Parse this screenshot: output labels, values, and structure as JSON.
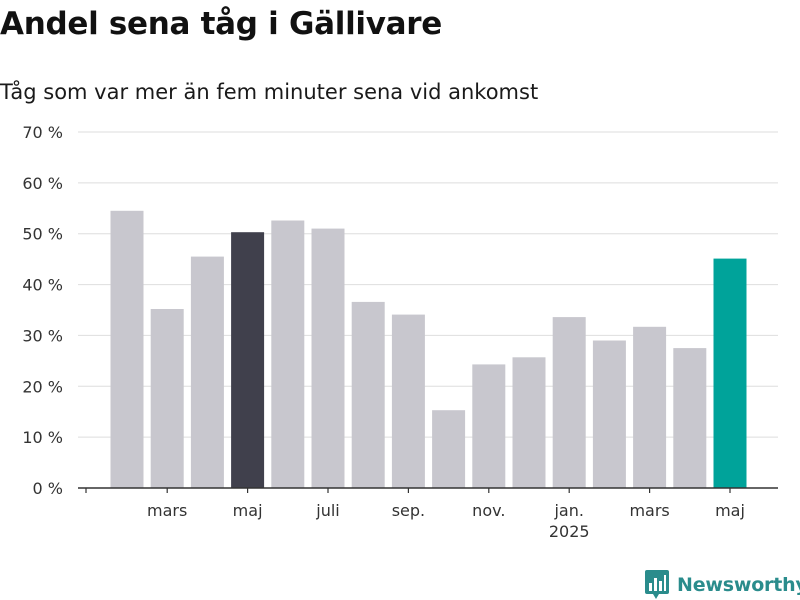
{
  "header": {
    "title": "Andel sena tåg i Gällivare",
    "subtitle": "Tåg som var mer än fem minuter sena vid ankomst"
  },
  "brand": {
    "name": "Newsworthy",
    "color": "#2a8c8c"
  },
  "colors": {
    "default": "#c8c7ce",
    "previous_year": "#40404c",
    "latest": "#00a39a"
  },
  "chart_data": {
    "type": "bar",
    "title": "Andel sena tåg i Gällivare",
    "subtitle": "Tåg som var mer än fem minuter sena vid ankomst",
    "xlabel": "",
    "ylabel": "",
    "ylim": [
      0,
      70
    ],
    "yticks": [
      0,
      10,
      20,
      30,
      40,
      50,
      60,
      70
    ],
    "ytick_labels": [
      "0 %",
      "10 %",
      "20 %",
      "30 %",
      "40 %",
      "50 %",
      "60 %",
      "70 %"
    ],
    "grid": true,
    "categories": [
      "2024-02",
      "2024-03",
      "2024-04",
      "2024-05",
      "2024-06",
      "2024-07",
      "2024-08",
      "2024-09",
      "2024-10",
      "2024-11",
      "2024-12",
      "2025-01",
      "2025-02",
      "2025-03",
      "2025-04",
      "2025-05"
    ],
    "values": [
      54.5,
      35.2,
      45.5,
      50.3,
      52.6,
      51.0,
      36.6,
      34.1,
      15.3,
      24.3,
      25.7,
      33.6,
      29.0,
      31.7,
      27.5,
      45.1
    ],
    "highlight": {
      "2024-05": "previous_year",
      "2025-05": "latest"
    },
    "x_tick_labels": [
      {
        "category": "2024-03",
        "label": "mars"
      },
      {
        "category": "2024-05",
        "label": "maj"
      },
      {
        "category": "2024-07",
        "label": "juli"
      },
      {
        "category": "2024-09",
        "label": "sep."
      },
      {
        "category": "2024-11",
        "label": "nov."
      },
      {
        "category": "2025-01",
        "label": "jan.",
        "sublabel": "2025"
      },
      {
        "category": "2025-03",
        "label": "mars"
      },
      {
        "category": "2025-05",
        "label": "maj"
      }
    ]
  }
}
